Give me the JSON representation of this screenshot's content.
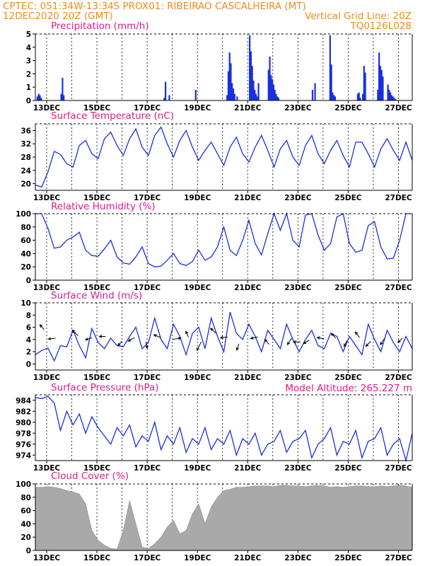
{
  "header": {
    "line1_left": "CPTEC:   051:34W-13:34S   PROX01: RIBEIRAO CASCALHEIRA (MT)",
    "line2_left": "12DEC2020 20Z (GMT)",
    "line2_right": "Vertical Grid Line: 20Z",
    "line3_right": "TQ0126L028"
  },
  "colors": {
    "header": "#f08a1c",
    "titles": "#e01a8c",
    "series": "#1a2fe0",
    "cloud": "#a9a9a9"
  },
  "x_axis_labels": [
    "13DEC",
    "15DEC",
    "17DEC",
    "19DEC",
    "21DEC",
    "23DEC",
    "25DEC",
    "27DEC"
  ],
  "model_altitude": "Model Altitude: 265.227 m",
  "chart_data": [
    {
      "id": "precip",
      "type": "bar",
      "title": "Precipitation (mm/h)",
      "ylim": [
        0,
        5
      ],
      "yticks": [
        "0",
        "1",
        "2",
        "3",
        "4",
        "5"
      ],
      "grid": "vertical",
      "x_days": [
        0.05,
        0.1,
        0.15,
        0.2,
        1.0,
        1.05,
        1.1,
        5.1,
        5.15,
        5.3,
        6.35,
        7.6,
        7.65,
        7.7,
        7.75,
        7.8,
        7.85,
        7.9,
        8.0,
        8.5,
        8.55,
        8.6,
        8.65,
        8.7,
        8.75,
        8.8,
        8.85,
        9.25,
        9.3,
        9.35,
        9.4,
        9.45,
        9.5,
        9.55,
        9.6,
        9.65,
        11.0,
        11.1,
        11.7,
        11.75,
        11.8,
        11.85,
        11.9,
        12.8,
        12.85,
        12.9,
        13.0,
        13.05,
        13.1,
        13.6,
        13.65,
        13.7,
        13.75,
        13.8,
        14.0,
        14.05,
        14.1,
        14.15,
        14.2,
        14.25,
        14.3
      ],
      "values": [
        0.3,
        0.5,
        0.4,
        0.2,
        0.5,
        1.7,
        0.4,
        0.2,
        1.4,
        0.4,
        0.8,
        0.4,
        2.2,
        3.6,
        2.8,
        1.3,
        0.9,
        0.5,
        0.3,
        4.9,
        3.7,
        2.6,
        1.5,
        0.8,
        0.5,
        0.3,
        1.3,
        2.3,
        3.3,
        1.9,
        1.6,
        1.2,
        0.8,
        0.5,
        0.3,
        0.2,
        0.8,
        1.3,
        4.9,
        2.7,
        0.6,
        0.4,
        0.3,
        0.5,
        0.6,
        0.2,
        0.5,
        2.6,
        2.1,
        0.8,
        3.6,
        2.6,
        2.3,
        1.8,
        1.2,
        0.8,
        0.6,
        0.4,
        0.3,
        0.2,
        0.1
      ]
    },
    {
      "id": "temp",
      "type": "line",
      "title": "Surface Temperature (nC)",
      "ylim": [
        18,
        38
      ],
      "yticks": [
        "20",
        "24",
        "28",
        "32",
        "36"
      ],
      "grid": "vertical",
      "x_days": [
        0.0,
        0.25,
        0.5,
        0.75,
        1.0,
        1.25,
        1.5,
        1.75,
        2.0,
        2.25,
        2.5,
        2.75,
        3.0,
        3.25,
        3.5,
        3.75,
        4.0,
        4.25,
        4.5,
        4.75,
        5.0,
        5.25,
        5.5,
        5.75,
        6.0,
        6.25,
        6.5,
        6.75,
        7.0,
        7.25,
        7.5,
        7.75,
        8.0,
        8.25,
        8.5,
        8.75,
        9.0,
        9.25,
        9.5,
        9.75,
        10.0,
        10.25,
        10.5,
        10.75,
        11.0,
        11.25,
        11.5,
        11.75,
        12.0,
        12.25,
        12.5,
        12.75,
        13.0,
        13.25,
        13.5,
        13.75,
        14.0,
        14.25,
        14.5,
        14.75,
        15.0
      ],
      "values": [
        19.6,
        19.0,
        23.5,
        29.7,
        28.8,
        26.0,
        25.0,
        31.5,
        33.0,
        29.0,
        27.5,
        33.5,
        35.5,
        31.5,
        28.5,
        33.5,
        36.5,
        31.0,
        28.5,
        34.5,
        37.0,
        32.0,
        28.0,
        33.0,
        36.0,
        31.0,
        27.0,
        30.0,
        32.5,
        29.0,
        25.5,
        31.0,
        34.0,
        29.0,
        26.5,
        31.0,
        34.5,
        30.0,
        25.0,
        30.5,
        33.0,
        28.0,
        25.5,
        31.5,
        34.5,
        29.0,
        26.0,
        30.0,
        33.0,
        28.5,
        25.0,
        32.5,
        32.5,
        29.0,
        25.0,
        30.5,
        33.5,
        30.0,
        27.0,
        32.5,
        27.0
      ]
    },
    {
      "id": "rh",
      "type": "line",
      "title": "Relative Humidity (%)",
      "ylim": [
        0,
        100
      ],
      "yticks": [
        "0",
        "20",
        "40",
        "60",
        "80",
        "100"
      ],
      "grid": "vertical",
      "x_days": [
        0.0,
        0.25,
        0.5,
        0.75,
        1.0,
        1.25,
        1.5,
        1.75,
        2.0,
        2.25,
        2.5,
        2.75,
        3.0,
        3.25,
        3.5,
        3.75,
        4.0,
        4.25,
        4.5,
        4.75,
        5.0,
        5.25,
        5.5,
        5.75,
        6.0,
        6.25,
        6.5,
        6.75,
        7.0,
        7.25,
        7.5,
        7.75,
        8.0,
        8.25,
        8.5,
        8.75,
        9.0,
        9.25,
        9.5,
        9.75,
        10.0,
        10.25,
        10.5,
        10.75,
        11.0,
        11.25,
        11.5,
        11.75,
        12.0,
        12.25,
        12.5,
        12.75,
        13.0,
        13.25,
        13.5,
        13.75,
        14.0,
        14.25,
        14.5,
        14.75,
        15.0
      ],
      "values": [
        100,
        100,
        78,
        48,
        50,
        60,
        65,
        72,
        45,
        37,
        36,
        47,
        60,
        35,
        26,
        24,
        35,
        50,
        25,
        20,
        21,
        30,
        40,
        25,
        22,
        28,
        45,
        30,
        35,
        50,
        80,
        45,
        37,
        60,
        90,
        55,
        38,
        70,
        100,
        75,
        100,
        60,
        50,
        98,
        100,
        68,
        45,
        55,
        95,
        100,
        55,
        42,
        45,
        82,
        88,
        50,
        32,
        33,
        60,
        100,
        100
      ]
    },
    {
      "id": "wind",
      "type": "line",
      "title": "Surface Wind (m/s)",
      "ylim": [
        -1,
        10
      ],
      "yticks": [
        "0",
        "2",
        "4",
        "6",
        "8",
        "10"
      ],
      "grid": "vertical",
      "x_days": [
        0.0,
        0.25,
        0.5,
        0.75,
        1.0,
        1.25,
        1.5,
        1.75,
        2.0,
        2.25,
        2.5,
        2.75,
        3.0,
        3.25,
        3.5,
        3.75,
        4.0,
        4.25,
        4.5,
        4.75,
        5.0,
        5.25,
        5.5,
        5.75,
        6.0,
        6.25,
        6.5,
        6.75,
        7.0,
        7.25,
        7.5,
        7.75,
        8.0,
        8.25,
        8.5,
        8.75,
        9.0,
        9.25,
        9.5,
        9.75,
        10.0,
        10.25,
        10.5,
        10.75,
        11.0,
        11.25,
        11.5,
        11.75,
        12.0,
        12.25,
        12.5,
        12.75,
        13.0,
        13.25,
        13.5,
        13.75,
        14.0,
        14.25,
        14.5,
        14.75,
        15.0
      ],
      "values": [
        1.5,
        2.2,
        2.6,
        0.5,
        3.0,
        2.8,
        5.5,
        3.0,
        1.0,
        5.8,
        3.5,
        2.5,
        4.2,
        3.0,
        2.8,
        4.5,
        6.0,
        2.5,
        3.5,
        7.5,
        4.0,
        2.5,
        6.5,
        4.5,
        1.5,
        5.0,
        6.0,
        2.5,
        7.5,
        4.5,
        2.0,
        8.5,
        5.0,
        4.0,
        6.5,
        4.5,
        2.0,
        5.5,
        4.0,
        2.5,
        6.5,
        4.0,
        2.0,
        4.0,
        5.5,
        3.0,
        2.5,
        5.0,
        4.5,
        2.0,
        4.5,
        3.0,
        1.5,
        6.5,
        4.0,
        2.0,
        5.5,
        3.5,
        2.0,
        4.5,
        2.5
      ],
      "arrows": [
        {
          "x": 0.35,
          "y": 5.6,
          "dx": -6,
          "dy": -7
        },
        {
          "x": 0.8,
          "y": 4.2,
          "dx": -10,
          "dy": 1
        },
        {
          "x": 1.7,
          "y": 4.6,
          "dx": -8,
          "dy": -8
        },
        {
          "x": 2.25,
          "y": 4.3,
          "dx": -9,
          "dy": 3
        },
        {
          "x": 2.8,
          "y": 4.5,
          "dx": -9,
          "dy": 0
        },
        {
          "x": 3.45,
          "y": 3.7,
          "dx": -6,
          "dy": 6
        },
        {
          "x": 3.95,
          "y": 4.3,
          "dx": -9,
          "dy": 5
        },
        {
          "x": 4.4,
          "y": 3.6,
          "dx": 2,
          "dy": 9
        },
        {
          "x": 5.0,
          "y": 4.3,
          "dx": -10,
          "dy": -4
        },
        {
          "x": 5.45,
          "y": 4.0,
          "dx": 12,
          "dy": -2
        },
        {
          "x": 6.1,
          "y": 4.4,
          "dx": -4,
          "dy": -8
        },
        {
          "x": 6.6,
          "y": 3.6,
          "dx": -6,
          "dy": 12
        },
        {
          "x": 7.2,
          "y": 5.0,
          "dx": -8,
          "dy": -7
        },
        {
          "x": 7.65,
          "y": 4.4,
          "dx": -10,
          "dy": 1
        },
        {
          "x": 8.1,
          "y": 3.3,
          "dx": -3,
          "dy": 9
        },
        {
          "x": 8.85,
          "y": 4.4,
          "dx": -10,
          "dy": 2
        },
        {
          "x": 9.3,
          "y": 3.2,
          "dx": -6,
          "dy": -7
        },
        {
          "x": 10.2,
          "y": 4.2,
          "dx": -6,
          "dy": 9
        },
        {
          "x": 10.55,
          "y": 3.6,
          "dx": -10,
          "dy": 0
        },
        {
          "x": 10.9,
          "y": 3.9,
          "dx": -8,
          "dy": 5
        },
        {
          "x": 11.5,
          "y": 4.1,
          "dx": -10,
          "dy": -2
        },
        {
          "x": 11.95,
          "y": 4.2,
          "dx": -6,
          "dy": -7
        },
        {
          "x": 12.4,
          "y": 3.8,
          "dx": -4,
          "dy": 8
        },
        {
          "x": 12.9,
          "y": 4.3,
          "dx": -6,
          "dy": -8
        },
        {
          "x": 13.35,
          "y": 3.7,
          "dx": -7,
          "dy": 7
        },
        {
          "x": 13.9,
          "y": 4.2,
          "dx": -6,
          "dy": 9
        },
        {
          "x": 14.6,
          "y": 4.2,
          "dx": -6,
          "dy": 6
        }
      ]
    },
    {
      "id": "press",
      "type": "line",
      "title": "Surface Pressure (hPa)",
      "ylim": [
        973,
        985
      ],
      "yticks": [
        "974",
        "976",
        "978",
        "980",
        "982",
        "984"
      ],
      "grid": "vertical",
      "x_days": [
        0.0,
        0.25,
        0.5,
        0.75,
        1.0,
        1.25,
        1.5,
        1.75,
        2.0,
        2.25,
        2.5,
        2.75,
        3.0,
        3.25,
        3.5,
        3.75,
        4.0,
        4.25,
        4.5,
        4.75,
        5.0,
        5.25,
        5.5,
        5.75,
        6.0,
        6.25,
        6.5,
        6.75,
        7.0,
        7.25,
        7.5,
        7.75,
        8.0,
        8.25,
        8.5,
        8.75,
        9.0,
        9.25,
        9.5,
        9.75,
        10.0,
        10.25,
        10.5,
        10.75,
        11.0,
        11.25,
        11.5,
        11.75,
        12.0,
        12.25,
        12.5,
        12.75,
        13.0,
        13.25,
        13.5,
        13.75,
        14.0,
        14.25,
        14.5,
        14.75,
        15.0
      ],
      "values": [
        984.5,
        984.3,
        984.7,
        983.5,
        978.5,
        982.0,
        979.5,
        981.5,
        978.0,
        981.0,
        979.0,
        977.5,
        976.0,
        979.0,
        977.5,
        979.5,
        975.5,
        977.5,
        976.5,
        980.0,
        975.0,
        977.5,
        976.0,
        979.0,
        974.5,
        977.0,
        976.0,
        979.0,
        975.0,
        977.0,
        976.0,
        978.5,
        974.0,
        977.0,
        976.0,
        978.0,
        974.0,
        976.0,
        976.5,
        978.5,
        974.5,
        976.5,
        977.0,
        978.5,
        973.5,
        976.0,
        977.0,
        979.0,
        974.0,
        976.5,
        976.0,
        978.5,
        973.5,
        976.5,
        977.0,
        979.0,
        974.0,
        976.0,
        977.0,
        973.0,
        978.0
      ]
    },
    {
      "id": "cloud",
      "type": "bar",
      "title": "Cloud Cover (%)",
      "ylim": [
        0,
        100
      ],
      "yticks": [
        "0",
        "20",
        "40",
        "60",
        "80",
        "100"
      ],
      "grid": "vertical",
      "x_days": [
        0.0,
        0.25,
        0.5,
        0.75,
        1.0,
        1.25,
        1.5,
        1.75,
        2.0,
        2.25,
        2.5,
        2.75,
        3.0,
        3.25,
        3.5,
        3.75,
        4.0,
        4.25,
        4.5,
        4.75,
        5.0,
        5.25,
        5.5,
        5.75,
        6.0,
        6.25,
        6.5,
        6.75,
        7.0,
        7.25,
        7.5,
        7.75,
        8.0,
        8.25,
        8.5,
        8.75,
        9.0,
        9.25,
        9.5,
        9.75,
        10.0,
        10.25,
        10.5,
        10.75,
        11.0,
        11.25,
        11.5,
        11.75,
        12.0,
        12.25,
        12.5,
        12.75,
        13.0,
        13.25,
        13.5,
        13.75,
        14.0,
        14.25,
        14.5,
        14.75,
        15.0
      ],
      "values": [
        95,
        95,
        96,
        95,
        93,
        90,
        88,
        85,
        70,
        30,
        15,
        8,
        3,
        2,
        30,
        75,
        40,
        5,
        3,
        10,
        20,
        35,
        45,
        25,
        30,
        55,
        70,
        40,
        65,
        80,
        90,
        92,
        95,
        95,
        96,
        97,
        97,
        97,
        96,
        98,
        98,
        97,
        97,
        96,
        97,
        98,
        97,
        95,
        96,
        95,
        96,
        97,
        97,
        96,
        96,
        97,
        96,
        97,
        98,
        97,
        95
      ]
    }
  ]
}
